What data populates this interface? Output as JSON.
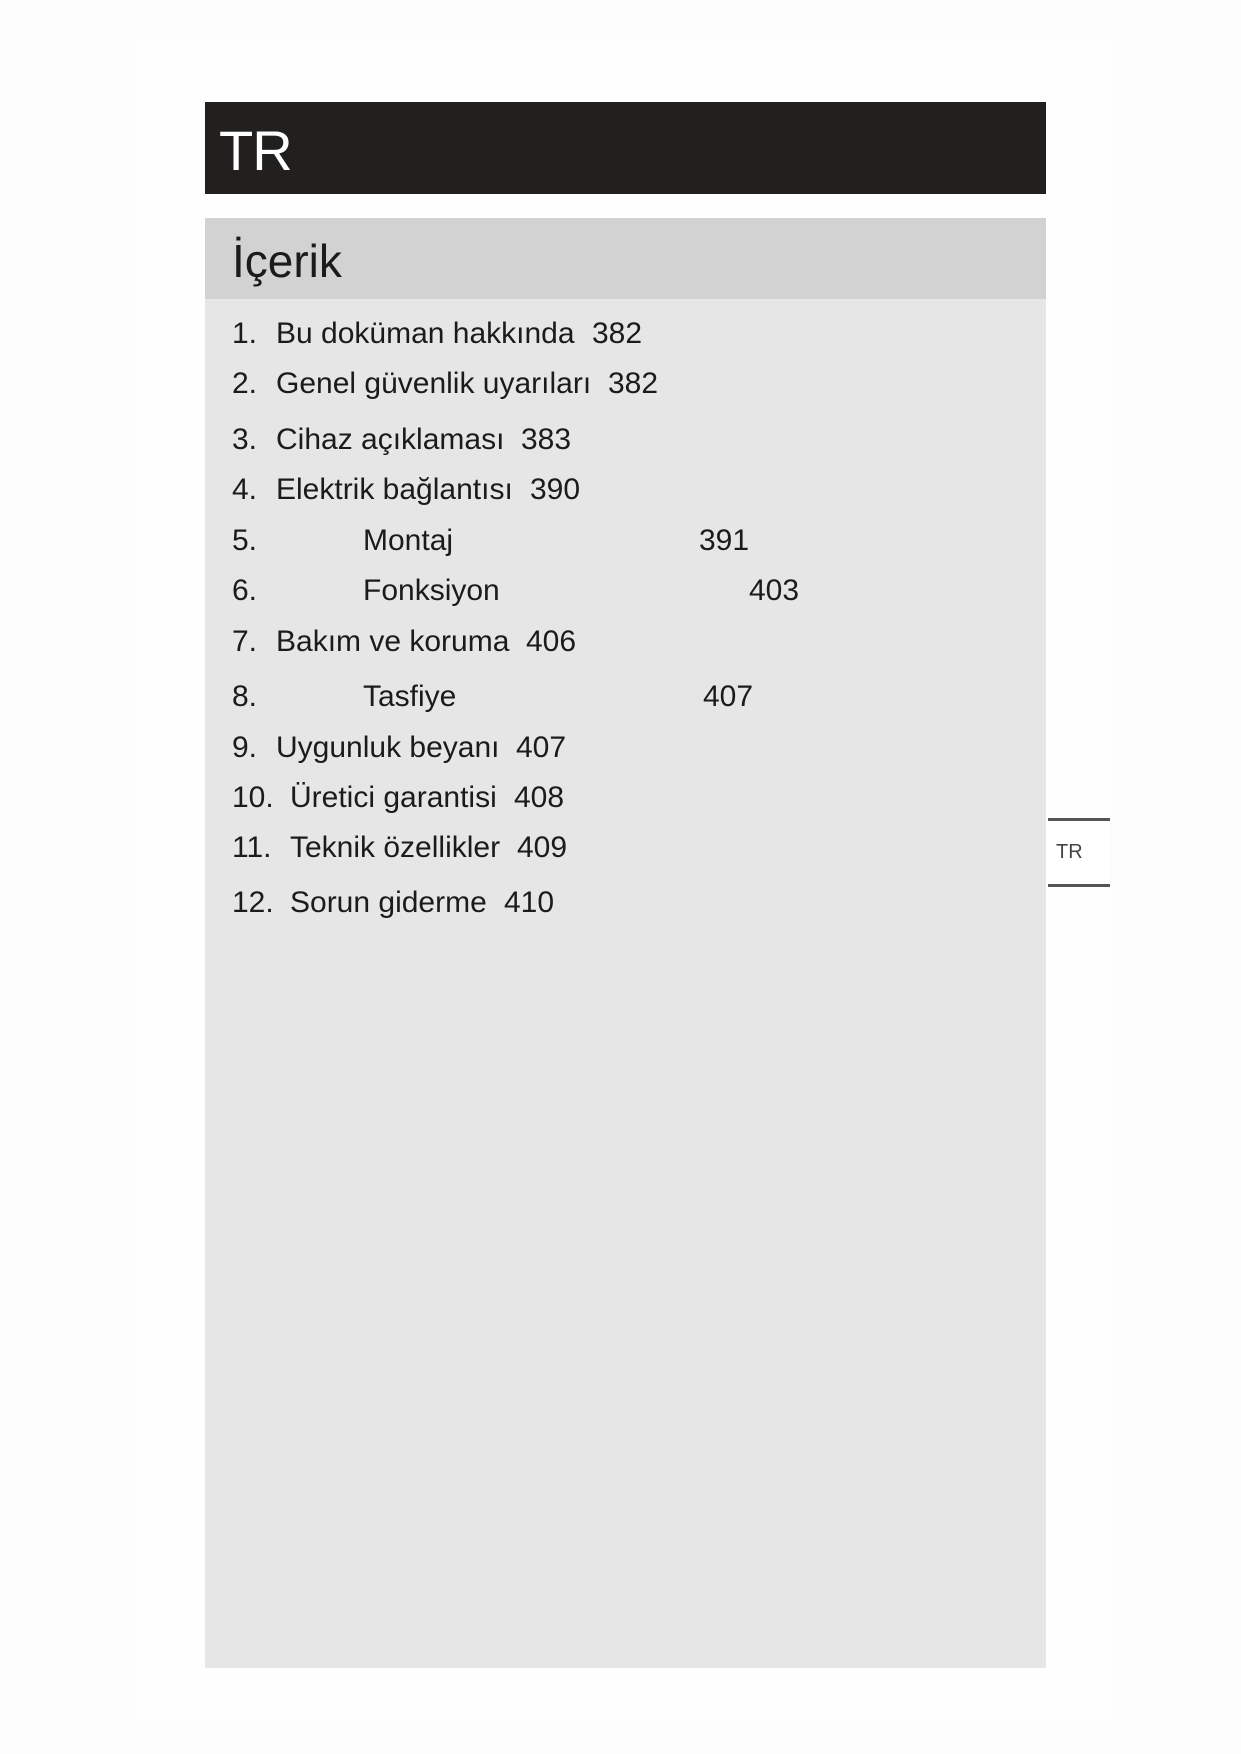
{
  "header": {
    "language_code": "TR"
  },
  "contents": {
    "title": "İçerik",
    "items": [
      {
        "num": "1.",
        "label": "Bu doküman hakkında",
        "page": "382"
      },
      {
        "num": "2.",
        "label": "Genel güvenlik uyarıları",
        "page": "382"
      },
      {
        "num": "3.",
        "label": "Cihaz açıklaması",
        "page": "383"
      },
      {
        "num": "4.",
        "label": "Elektrik bağlantısı",
        "page": "390"
      },
      {
        "num": "5.",
        "label": "Montaj",
        "page": "391"
      },
      {
        "num": "6.",
        "label": "Fonksiyon",
        "page": "403"
      },
      {
        "num": "7.",
        "label": "Bakım ve koruma",
        "page": "406"
      },
      {
        "num": "8.",
        "label": "Tasfiye",
        "page": "407"
      },
      {
        "num": "9.",
        "label": "Uygunluk beyanı",
        "page": "407"
      },
      {
        "num": "10.",
        "label": "Üretici garantisi",
        "page": "408"
      },
      {
        "num": "11.",
        "label": "Teknik özellikler",
        "page": "409"
      },
      {
        "num": "12.",
        "label": "Sorun giderme",
        "page": "410"
      }
    ]
  },
  "side_tab": {
    "label": "TR"
  }
}
